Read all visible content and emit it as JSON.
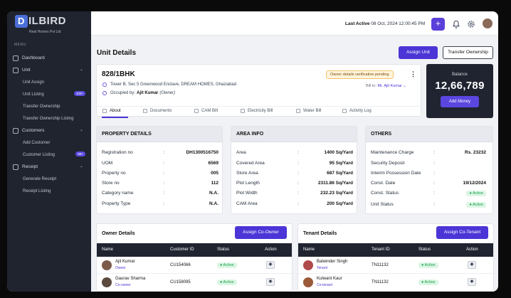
{
  "brand": {
    "name": "DILBIRD",
    "initial": "D",
    "rest": "ILBIRD",
    "tagline": "Real Homes Pvt Ltd"
  },
  "sidebar": {
    "menu_label": "MENU",
    "items": [
      {
        "label": "Dashboard"
      },
      {
        "label": "Unit"
      },
      {
        "label": "Unit Assign"
      },
      {
        "label": "Unit Listing",
        "badge": "100+"
      },
      {
        "label": "Transfer Ownership"
      },
      {
        "label": "Transfer Ownership Listing"
      },
      {
        "label": "Customers"
      },
      {
        "label": "Add Customer"
      },
      {
        "label": "Customer Listing",
        "badge": "99+"
      },
      {
        "label": "Receipt"
      },
      {
        "label": "Generate Receipt"
      },
      {
        "label": "Receipt Listing"
      }
    ]
  },
  "topbar": {
    "last_active_label": "Last Active",
    "last_active_value": "08 Oct, 2024 12:00:45 PM",
    "plus": "+"
  },
  "page": {
    "title": "Unit Details",
    "assign_unit": "Assign Unit",
    "transfer_ownership": "Transfer Ownership"
  },
  "unit": {
    "code": "828/1BHK",
    "address": "Tower B, Sec 5 Greenwood Enclave, DREAM HOMES, Ghaziabad",
    "occupied_label": "Occupied by:",
    "occupant": "Ajit Kumar",
    "occupant_role": "(Owner)",
    "pending_badge": "Owner details verification pending",
    "bill_to_label": "Bill to:",
    "bill_to_value": "Mr. Ajit Kumar"
  },
  "tabs": [
    "About",
    "Documents",
    "CAM Bill",
    "Electricity Bill",
    "Water Bill",
    "Activity Log"
  ],
  "balance": {
    "label": "Balance",
    "amount": "12,66,789",
    "add_money": "Add Money"
  },
  "property": {
    "title": "PROPERTY DETAILS",
    "rows": [
      {
        "k": "Registration no",
        "v": "DH1300516750"
      },
      {
        "k": "UOM",
        "v": "6569"
      },
      {
        "k": "Property no",
        "v": "005"
      },
      {
        "k": "Store no",
        "v": "112"
      },
      {
        "k": "Category name",
        "v": "N.A."
      },
      {
        "k": "Property Type",
        "v": "N.A."
      }
    ]
  },
  "area": {
    "title": "AREA INFO",
    "rows": [
      {
        "k": "Area",
        "v": "1400 Sq/Yard"
      },
      {
        "k": "Covered Area",
        "v": "95 Sq/Yard"
      },
      {
        "k": "Store Area",
        "v": "687 Sq/Yard"
      },
      {
        "k": "Plot Length",
        "v": "2311.86 Sq/Yard"
      },
      {
        "k": "Plot Width",
        "v": "232.23 Sq/Yard"
      },
      {
        "k": "CAM Area",
        "v": "200 Sq/Yard"
      }
    ]
  },
  "others": {
    "title": "OTHERS",
    "rows": [
      {
        "k": "Maintenance Charge",
        "v": "Rs. 23232"
      },
      {
        "k": "Security Deposit",
        "v": ""
      },
      {
        "k": "Interim Possession Date",
        "v": ""
      },
      {
        "k": "Const. Date",
        "v": "19/12/2024"
      },
      {
        "k": "Const. Status",
        "v": "Active"
      },
      {
        "k": "Unit Status",
        "v": "Active"
      }
    ]
  },
  "owners": {
    "title": "Owner Details",
    "assign": "Assign Co-Owner",
    "cols": [
      "Name",
      "Customer ID",
      "Status",
      "Action"
    ],
    "rows": [
      {
        "name": "Ajit Kumar",
        "role": "Owner",
        "id": "CU154066",
        "status": "Active"
      },
      {
        "name": "Gaurav Sharma",
        "role": "Co-owner",
        "id": "CU158095",
        "status": "Active"
      }
    ]
  },
  "tenants": {
    "title": "Tenant Details",
    "assign": "Assign Co-Tenant",
    "cols": [
      "Name",
      "Tenant ID",
      "Status",
      "Action"
    ],
    "rows": [
      {
        "name": "Balwinder Singh",
        "role": "Tenant",
        "id": "TN11132",
        "status": "Active"
      },
      {
        "name": "Kulwant Kaur",
        "role": "Co-tenant",
        "id": "TN11132",
        "status": "Active"
      }
    ]
  },
  "colors": {
    "accent": "#4b35d6",
    "sidebar": "#20242f",
    "active_green": "#16a34a"
  }
}
